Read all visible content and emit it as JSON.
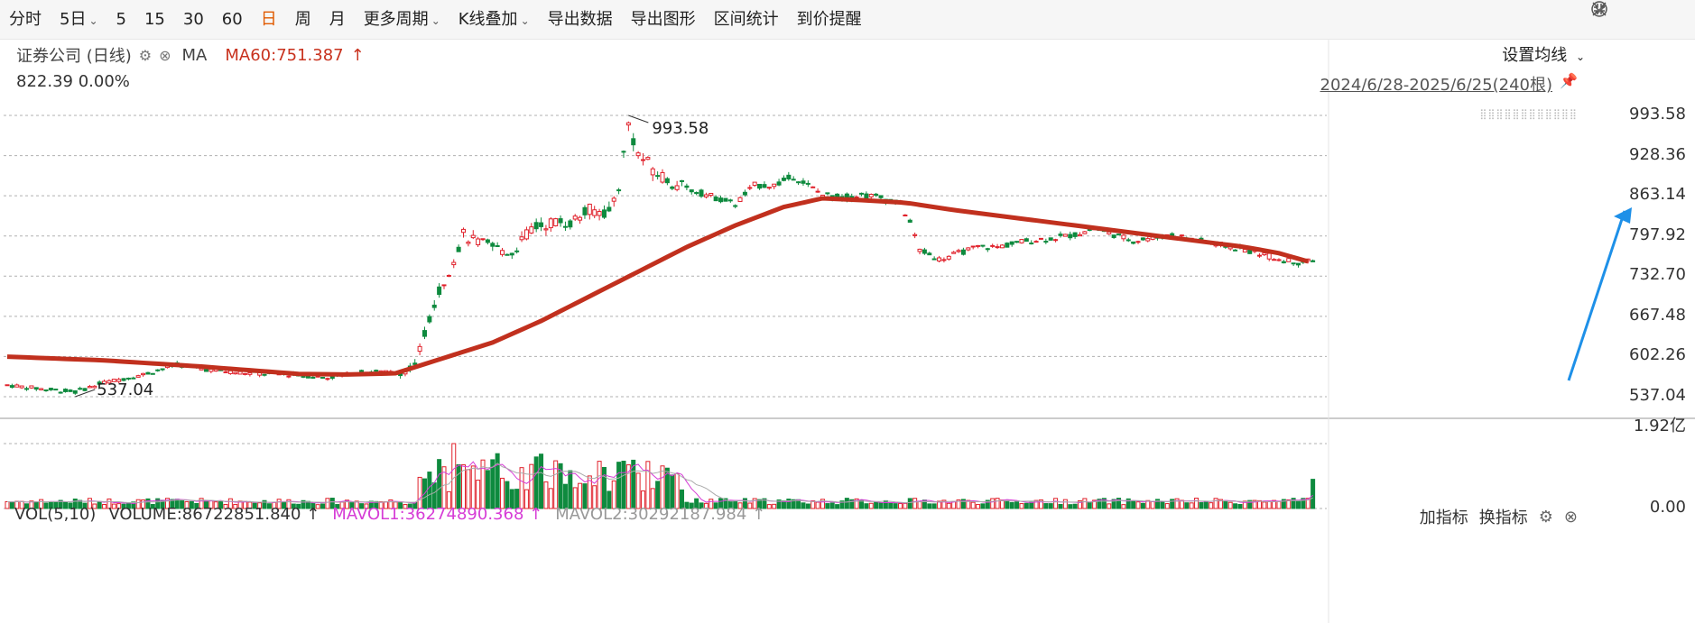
{
  "toolbar": {
    "items": [
      {
        "label": "分时",
        "active": false
      },
      {
        "label": "5日",
        "active": false,
        "dropdown": true
      },
      {
        "label": "5",
        "active": false
      },
      {
        "label": "15",
        "active": false
      },
      {
        "label": "30",
        "active": false
      },
      {
        "label": "60",
        "active": false
      },
      {
        "label": "日",
        "active": true
      },
      {
        "label": "周",
        "active": false
      },
      {
        "label": "月",
        "active": false
      },
      {
        "label": "更多周期",
        "active": false,
        "dropdown": true
      },
      {
        "label": "K线叠加",
        "active": false,
        "dropdown": true
      },
      {
        "label": "导出数据",
        "active": false
      },
      {
        "label": "导出图形",
        "active": false
      },
      {
        "label": "区间统计",
        "active": false
      },
      {
        "label": "到价提醒",
        "active": false
      }
    ],
    "right_icons": [
      "chevron-circle-icon",
      "brush-icon",
      "collapse-icon"
    ]
  },
  "legend": {
    "name": "证券公司 (日线)",
    "ma_label": "MA",
    "ma60_label": "MA60:751.387",
    "ma60_arrow": "↑"
  },
  "price_info": "822.39 0.00%",
  "set_ma_label": "设置均线",
  "date_range": "2024/6/28-2025/6/25(240根)",
  "volume_legend": {
    "vol": "VOL(5,10)",
    "volume": "VOLUME:86722851.840",
    "volume_arrow": "↑",
    "mavol1": "MAVOL1:36274890.368",
    "mavol1_arrow": "↑",
    "mavol2": "MAVOL2:30292187.984",
    "mavol2_arrow": "↑"
  },
  "volume_buttons": {
    "add": "加指标",
    "switch": "换指标"
  },
  "price_axis": [
    "993.58",
    "928.36",
    "863.14",
    "797.92",
    "732.70",
    "667.48",
    "602.26",
    "537.04"
  ],
  "volume_axis": [
    "1.92亿",
    "0.00"
  ],
  "chart_data": {
    "type": "candlestick",
    "count": 240,
    "high_label": "993.58",
    "low_label": "537.04",
    "y_range": [
      537.04,
      993.58
    ],
    "colors": {
      "up": "#e0202a",
      "down": "#0e8a3e",
      "ma60": "#c1301e",
      "mavol1": "#d63cd6",
      "mavol2": "#aaaaaa",
      "arrow": "#1e90e8"
    },
    "key_closes": [
      [
        0,
        556
      ],
      [
        8,
        549
      ],
      [
        14,
        545
      ],
      [
        20,
        560
      ],
      [
        28,
        573
      ],
      [
        35,
        589
      ],
      [
        42,
        580
      ],
      [
        50,
        575
      ],
      [
        58,
        573
      ],
      [
        66,
        568
      ],
      [
        74,
        578
      ],
      [
        80,
        576
      ],
      [
        84,
        585
      ],
      [
        86,
        640
      ],
      [
        88,
        690
      ],
      [
        92,
        760
      ],
      [
        94,
        800
      ],
      [
        96,
        790
      ],
      [
        100,
        780
      ],
      [
        104,
        770
      ],
      [
        108,
        810
      ],
      [
        112,
        820
      ],
      [
        116,
        820
      ],
      [
        120,
        840
      ],
      [
        124,
        835
      ],
      [
        126,
        880
      ],
      [
        128,
        980
      ],
      [
        130,
        930
      ],
      [
        134,
        900
      ],
      [
        138,
        880
      ],
      [
        142,
        870
      ],
      [
        146,
        860
      ],
      [
        150,
        850
      ],
      [
        154,
        880
      ],
      [
        158,
        880
      ],
      [
        162,
        895
      ],
      [
        164,
        885
      ],
      [
        168,
        865
      ],
      [
        172,
        860
      ],
      [
        176,
        865
      ],
      [
        180,
        860
      ],
      [
        184,
        850
      ],
      [
        186,
        820
      ],
      [
        188,
        775
      ],
      [
        192,
        760
      ],
      [
        196,
        770
      ],
      [
        200,
        780
      ],
      [
        204,
        780
      ],
      [
        210,
        790
      ],
      [
        216,
        795
      ],
      [
        220,
        800
      ],
      [
        224,
        810
      ],
      [
        228,
        800
      ],
      [
        232,
        790
      ],
      [
        236,
        795
      ],
      [
        240,
        800
      ],
      [
        246,
        790
      ],
      [
        252,
        780
      ],
      [
        258,
        770
      ],
      [
        262,
        760
      ],
      [
        266,
        755
      ],
      [
        270,
        760
      ]
    ],
    "ma60_points": [
      [
        0,
        602
      ],
      [
        20,
        596
      ],
      [
        40,
        586
      ],
      [
        60,
        574
      ],
      [
        70,
        573
      ],
      [
        80,
        575
      ],
      [
        90,
        600
      ],
      [
        100,
        625
      ],
      [
        110,
        660
      ],
      [
        120,
        700
      ],
      [
        130,
        740
      ],
      [
        140,
        780
      ],
      [
        150,
        815
      ],
      [
        160,
        845
      ],
      [
        168,
        859
      ],
      [
        176,
        856
      ],
      [
        185,
        852
      ],
      [
        195,
        840
      ],
      [
        205,
        830
      ],
      [
        215,
        820
      ],
      [
        225,
        810
      ],
      [
        235,
        800
      ],
      [
        245,
        790
      ],
      [
        255,
        780
      ],
      [
        262,
        770
      ],
      [
        270,
        752
      ]
    ]
  }
}
